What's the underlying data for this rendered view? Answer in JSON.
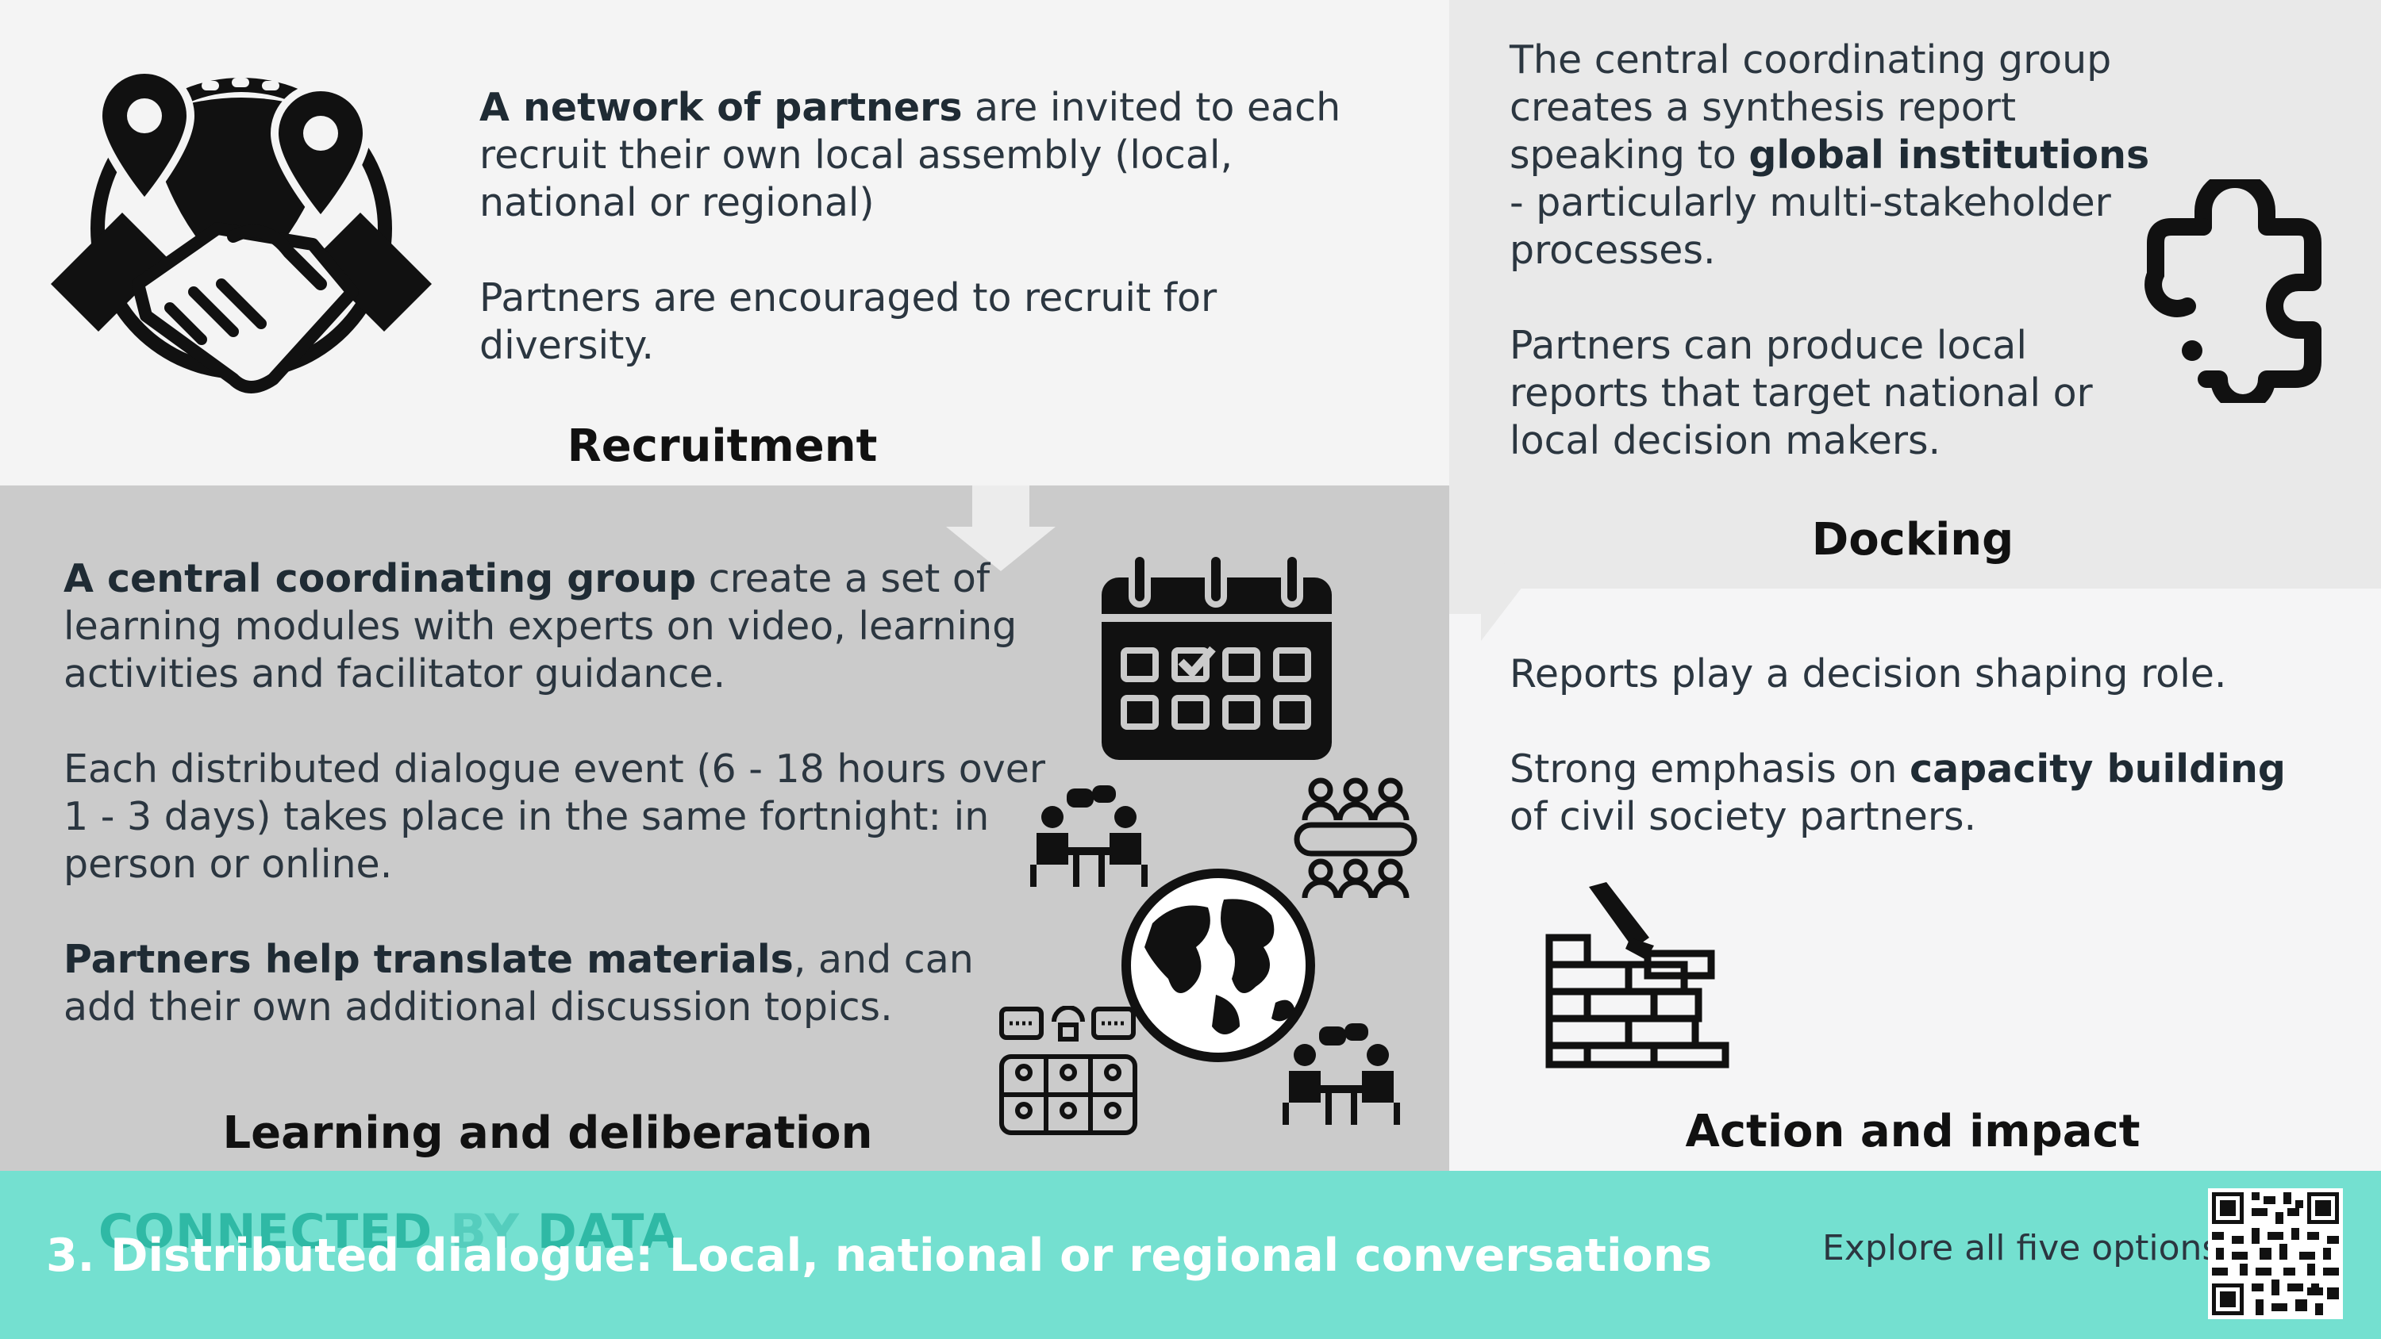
{
  "recruitment": {
    "heading": "Recruitment",
    "p1_bold": "A network of partners",
    "p1_rest": " are invited to each recruit their own local assembly (local, national or regional)",
    "p2": "Partners are encouraged to recruit for diversity.",
    "icon": "handshake-globe-icon"
  },
  "docking": {
    "heading": "Docking",
    "p1_pre": "The central coordinating group creates a synthesis report speaking to ",
    "p1_bold": "global institutions",
    "p1_post": " - particularly multi-stakeholder processes.",
    "p2": "Partners can produce local reports that target national or local decision makers.",
    "icon": "puzzle-piece-icon"
  },
  "learning": {
    "heading": "Learning and deliberation",
    "p1_bold": "A central coordinating group",
    "p1_rest": " create a set of learning modules with experts on video, learning activities and facilitator guidance.",
    "p2": "Each distributed dialogue event (6 - 18 hours over 1 - 3 days) takes place in the same fortnight: in person or online.",
    "p3_bold": "Partners help translate materials",
    "p3_rest": ", and can add their own additional discussion topics.",
    "icons": [
      "calendar-icon",
      "conversation-icon",
      "meeting-table-icon",
      "globe-icon",
      "video-call-icon"
    ]
  },
  "action": {
    "heading": "Action and impact",
    "p1": "Reports play a decision shaping role.",
    "p2_pre": "Strong emphasis on ",
    "p2_bold": "capacity building",
    "p2_post": " of civil society partners.",
    "icon": "brick-wall-trowel-icon"
  },
  "footer": {
    "brand_part1": "CONNECTED",
    "brand_part2": " BY ",
    "brand_part3": "DATA",
    "title": "3. Distributed dialogue:  Local, national or regional conversations",
    "explore": "Explore all five options:",
    "qr_icon": "qr-code-icon"
  },
  "colors": {
    "footer_bg": "#74e0d0",
    "learning_bg": "#cbcbcb",
    "docking_bg": "#e9e9e9",
    "brand": "#2fb9a5"
  }
}
